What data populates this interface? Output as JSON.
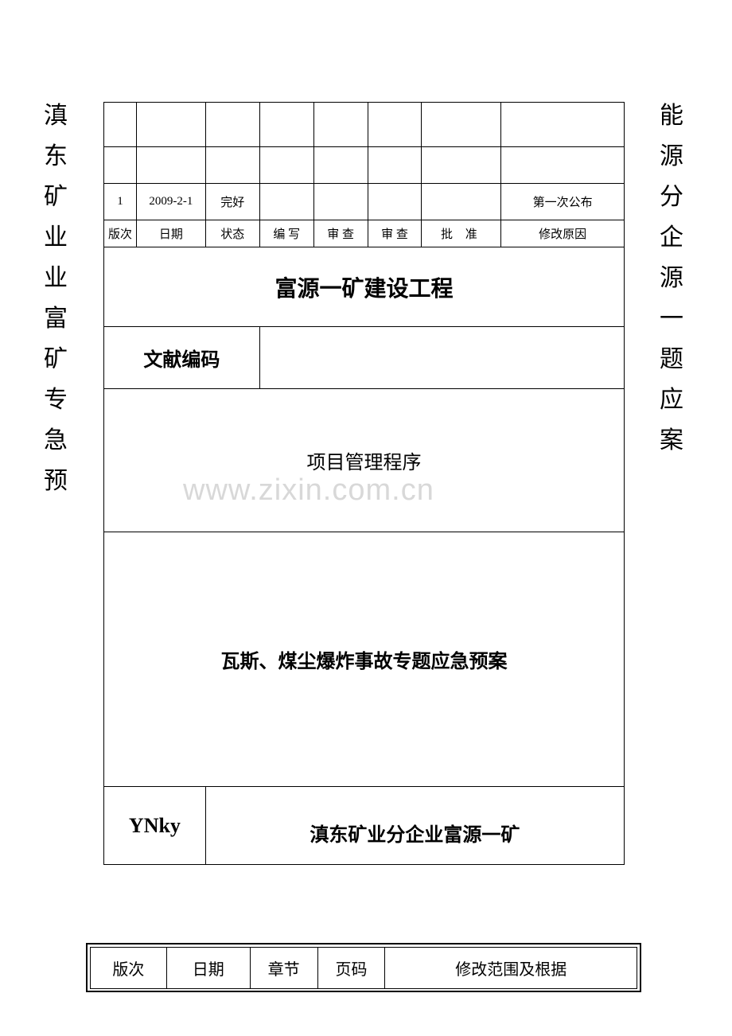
{
  "side_text": {
    "left": "滇东\n矿业\n业富\n矿专\n急预",
    "right": "能源\n分企\n源一\n题应\n案"
  },
  "header_table": {
    "row1": {
      "version": "1",
      "date": "2009-2-1",
      "status": "完好",
      "write": "",
      "review1": "",
      "review2": "",
      "approve": "",
      "reason": "第一次公布"
    },
    "labels": {
      "version": "版次",
      "date": "日期",
      "status": "状态",
      "write": "编 写",
      "review1": "审 查",
      "review2": "审 查",
      "approve": "批  准",
      "reason": "修改原因"
    }
  },
  "title": "富源一矿建设工程",
  "doc_code_label": "文献编码",
  "doc_code_value": "",
  "program_title": "项目管理程序",
  "plan_title": "瓦斯、煤尘爆炸事故专题应急预案",
  "org_code": "YNky",
  "org_name": "滇东矿业分企业富源一矿",
  "watermark": "www.zixin.com.cn",
  "bottom_table": {
    "version": "版次",
    "date": "日期",
    "chapter": "章节",
    "page": "页码",
    "scope": "修改范围及根据"
  },
  "colors": {
    "text": "#000000",
    "background": "#ffffff",
    "watermark": "#d8d8d8",
    "border": "#000000"
  },
  "fonts": {
    "body": "SimSun",
    "code": "Times New Roman",
    "title_size": 28,
    "label_size": 15,
    "side_size": 30
  }
}
